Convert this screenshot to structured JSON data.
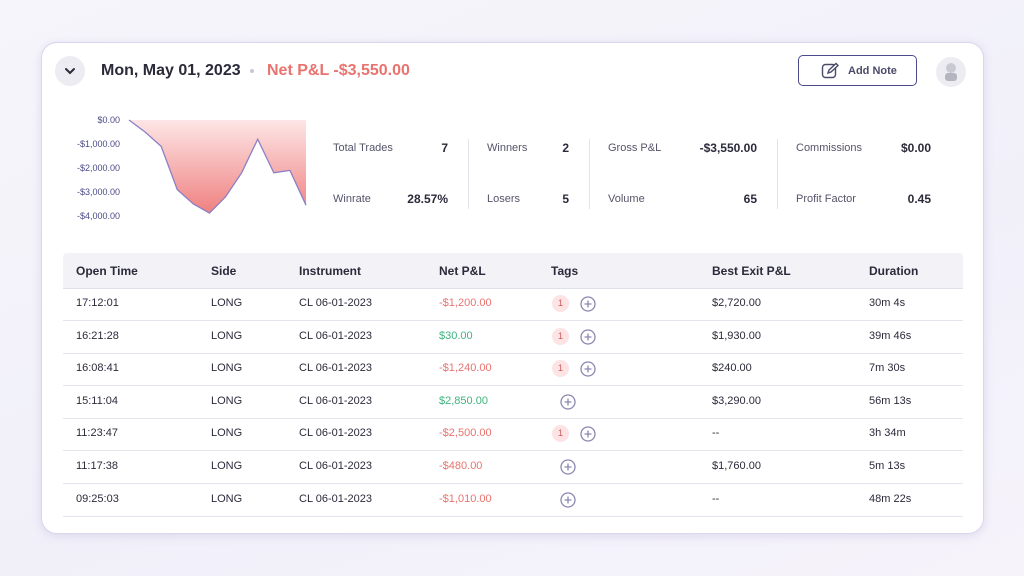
{
  "header": {
    "date": "Mon, May 01, 2023",
    "net_pnl_label": "Net P&L",
    "net_pnl": "-$3,550.00",
    "add_note": "Add Note"
  },
  "chart": {
    "type": "area",
    "values": [
      0,
      -500,
      -1100,
      -2900,
      -3500,
      -3880,
      -3200,
      -2200,
      -800,
      -2200,
      -2100,
      -3550
    ],
    "ylim": [
      -4000,
      0
    ],
    "yticks": [
      {
        "value": 0,
        "label": "$0.00"
      },
      {
        "value": -1000,
        "label": "-$1,000.00"
      },
      {
        "value": -2000,
        "label": "-$2,000.00"
      },
      {
        "value": -3000,
        "label": "-$3,000.00"
      },
      {
        "value": -4000,
        "label": "-$4,000.00"
      }
    ],
    "color": "#f08080",
    "line_color": "#8b80c4"
  },
  "stats": [
    [
      {
        "label": "Total Trades",
        "value": "7"
      },
      {
        "label": "Winners",
        "value": "2"
      },
      {
        "label": "Gross P&L",
        "value": "-$3,550.00"
      },
      {
        "label": "Commissions",
        "value": "$0.00"
      }
    ],
    [
      {
        "label": "Winrate",
        "value": "28.57%"
      },
      {
        "label": "Losers",
        "value": "5"
      },
      {
        "label": "Volume",
        "value": "65"
      },
      {
        "label": "Profit Factor",
        "value": "0.45"
      }
    ]
  ],
  "table": {
    "columns": [
      "Open Time",
      "Side",
      "Instrument",
      "Net P&L",
      "Tags",
      "Best Exit P&L",
      "Duration"
    ],
    "rows": [
      [
        "17:12:01",
        "LONG",
        "CL 06-01-2023",
        "-$1,200.00",
        "1",
        "$2,720.00",
        "30m 4s"
      ],
      [
        "16:21:28",
        "LONG",
        "CL 06-01-2023",
        "$30.00",
        "1",
        "$1,930.00",
        "39m 46s"
      ],
      [
        "16:08:41",
        "LONG",
        "CL 06-01-2023",
        "-$1,240.00",
        "1",
        "$240.00",
        "7m 30s"
      ],
      [
        "15:11:04",
        "LONG",
        "CL 06-01-2023",
        "$2,850.00",
        null,
        "$3,290.00",
        "56m 13s"
      ],
      [
        "11:23:47",
        "LONG",
        "CL 06-01-2023",
        "-$2,500.00",
        "1",
        "--",
        "3h 34m"
      ],
      [
        "11:17:38",
        "LONG",
        "CL 06-01-2023",
        "-$480.00",
        null,
        "$1,760.00",
        "5m 13s"
      ],
      [
        "09:25:03",
        "LONG",
        "CL 06-01-2023",
        "-$1,010.00",
        null,
        "--",
        "48m 22s"
      ]
    ],
    "positive_color": "#3fb37f",
    "negative_color": "#e8736f"
  }
}
